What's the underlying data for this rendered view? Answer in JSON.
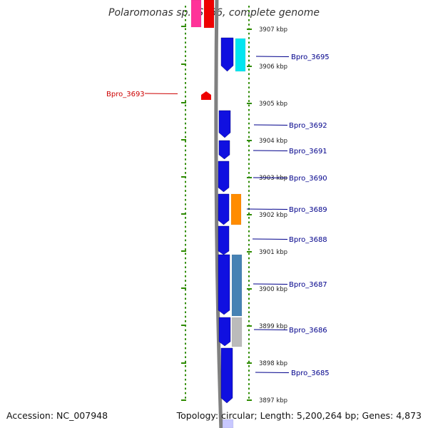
{
  "title": "Polaromonas sp. JS666, complete genome",
  "footer": {
    "accession": "Accession: NC_007948",
    "summary": "Topology: circular; Length: 5,200,264 bp; Genes: 4,873"
  },
  "colors": {
    "forward_gene": "#1010e0",
    "cyan_gene": "#00e5f0",
    "orange_gene": "#ff8c00",
    "red_gene": "#ee0000",
    "pink_gene": "#ff3399",
    "steel_gene": "#4682b4",
    "gray_gene": "#bbbbbb",
    "tick_green": "#2e8b00",
    "backbone": "#808080",
    "label_blue": "#00008b",
    "label_red": "#cc0000"
  },
  "scale": {
    "unit": "kbp",
    "ticks": [
      {
        "kbp": 3907,
        "label": "3907 kbp"
      },
      {
        "kbp": 3906,
        "label": "3906 kbp"
      },
      {
        "kbp": 3905,
        "label": "3905 kbp"
      },
      {
        "kbp": 3904,
        "label": "3904 kbp"
      },
      {
        "kbp": 3903,
        "label": "3903 kbp"
      },
      {
        "kbp": 3902,
        "label": "3902 kbp"
      },
      {
        "kbp": 3901,
        "label": "3901 kbp"
      },
      {
        "kbp": 3900,
        "label": "3900 kbp"
      },
      {
        "kbp": 3899,
        "label": "3899 kbp"
      },
      {
        "kbp": 3898,
        "label": "3898 kbp"
      },
      {
        "kbp": 3897,
        "label": "3897 kbp"
      }
    ]
  },
  "gene_labels": [
    {
      "id": "Bpro_3695",
      "text": "Bpro_3695",
      "strand": "forward"
    },
    {
      "id": "Bpro_3693",
      "text": "Bpro_3693",
      "strand": "reverse"
    },
    {
      "id": "Bpro_3692",
      "text": "Bpro_3692",
      "strand": "forward"
    },
    {
      "id": "Bpro_3691",
      "text": "Bpro_3691",
      "strand": "forward"
    },
    {
      "id": "Bpro_3690",
      "text": "Bpro_3690",
      "strand": "forward"
    },
    {
      "id": "Bpro_3689",
      "text": "Bpro_3689",
      "strand": "forward"
    },
    {
      "id": "Bpro_3688",
      "text": "Bpro_3688",
      "strand": "forward"
    },
    {
      "id": "Bpro_3687",
      "text": "Bpro_3687",
      "strand": "forward"
    },
    {
      "id": "Bpro_3686",
      "text": "Bpro_3686",
      "strand": "forward"
    },
    {
      "id": "Bpro_3685",
      "text": "Bpro_3685",
      "strand": "forward"
    }
  ]
}
